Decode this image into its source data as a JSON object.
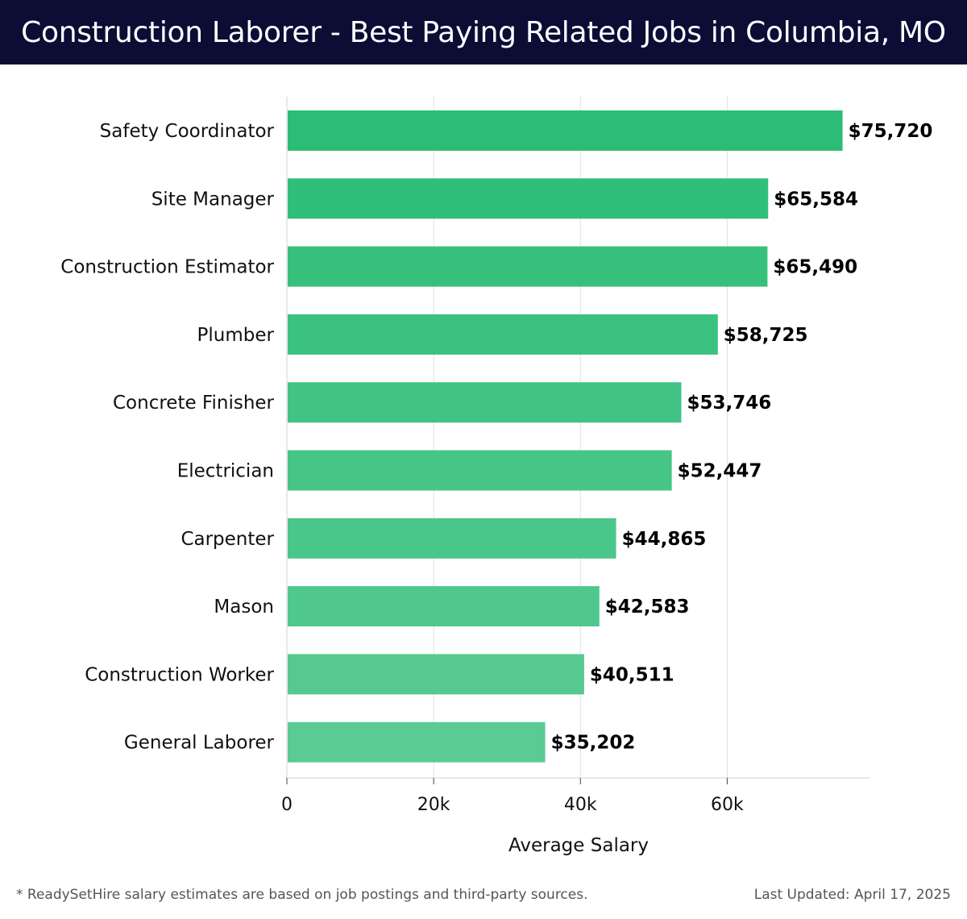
{
  "header": {
    "title": "Construction Laborer - Best Paying Related Jobs in Columbia, MO"
  },
  "chart_data": {
    "type": "bar",
    "orientation": "horizontal",
    "categories": [
      "Safety Coordinator",
      "Site Manager",
      "Construction Estimator",
      "Plumber",
      "Concrete Finisher",
      "Electrician",
      "Carpenter",
      "Mason",
      "Construction Worker",
      "General Laborer"
    ],
    "values": [
      75720,
      65584,
      65490,
      58725,
      53746,
      52447,
      44865,
      42583,
      40511,
      35202
    ],
    "value_labels": [
      "$75,720",
      "$65,584",
      "$65,490",
      "$58,725",
      "$53,746",
      "$52,447",
      "$44,865",
      "$42,583",
      "$40,511",
      "$35,202"
    ],
    "xlabel": "Average Salary",
    "xlim": [
      0,
      79500
    ],
    "xticks": [
      0,
      20000,
      40000,
      60000
    ],
    "xtick_labels": [
      "0",
      "20k",
      "40k",
      "60k"
    ],
    "grid": "vertical",
    "colors": {
      "bar_top": "#2bbd75",
      "bar_bottom": "#5bcb94",
      "grid": "#e0e0e0"
    }
  },
  "footer": {
    "note": "* ReadySetHire salary estimates are based on job postings and third-party sources.",
    "updated": "Last Updated: April 17, 2025"
  }
}
